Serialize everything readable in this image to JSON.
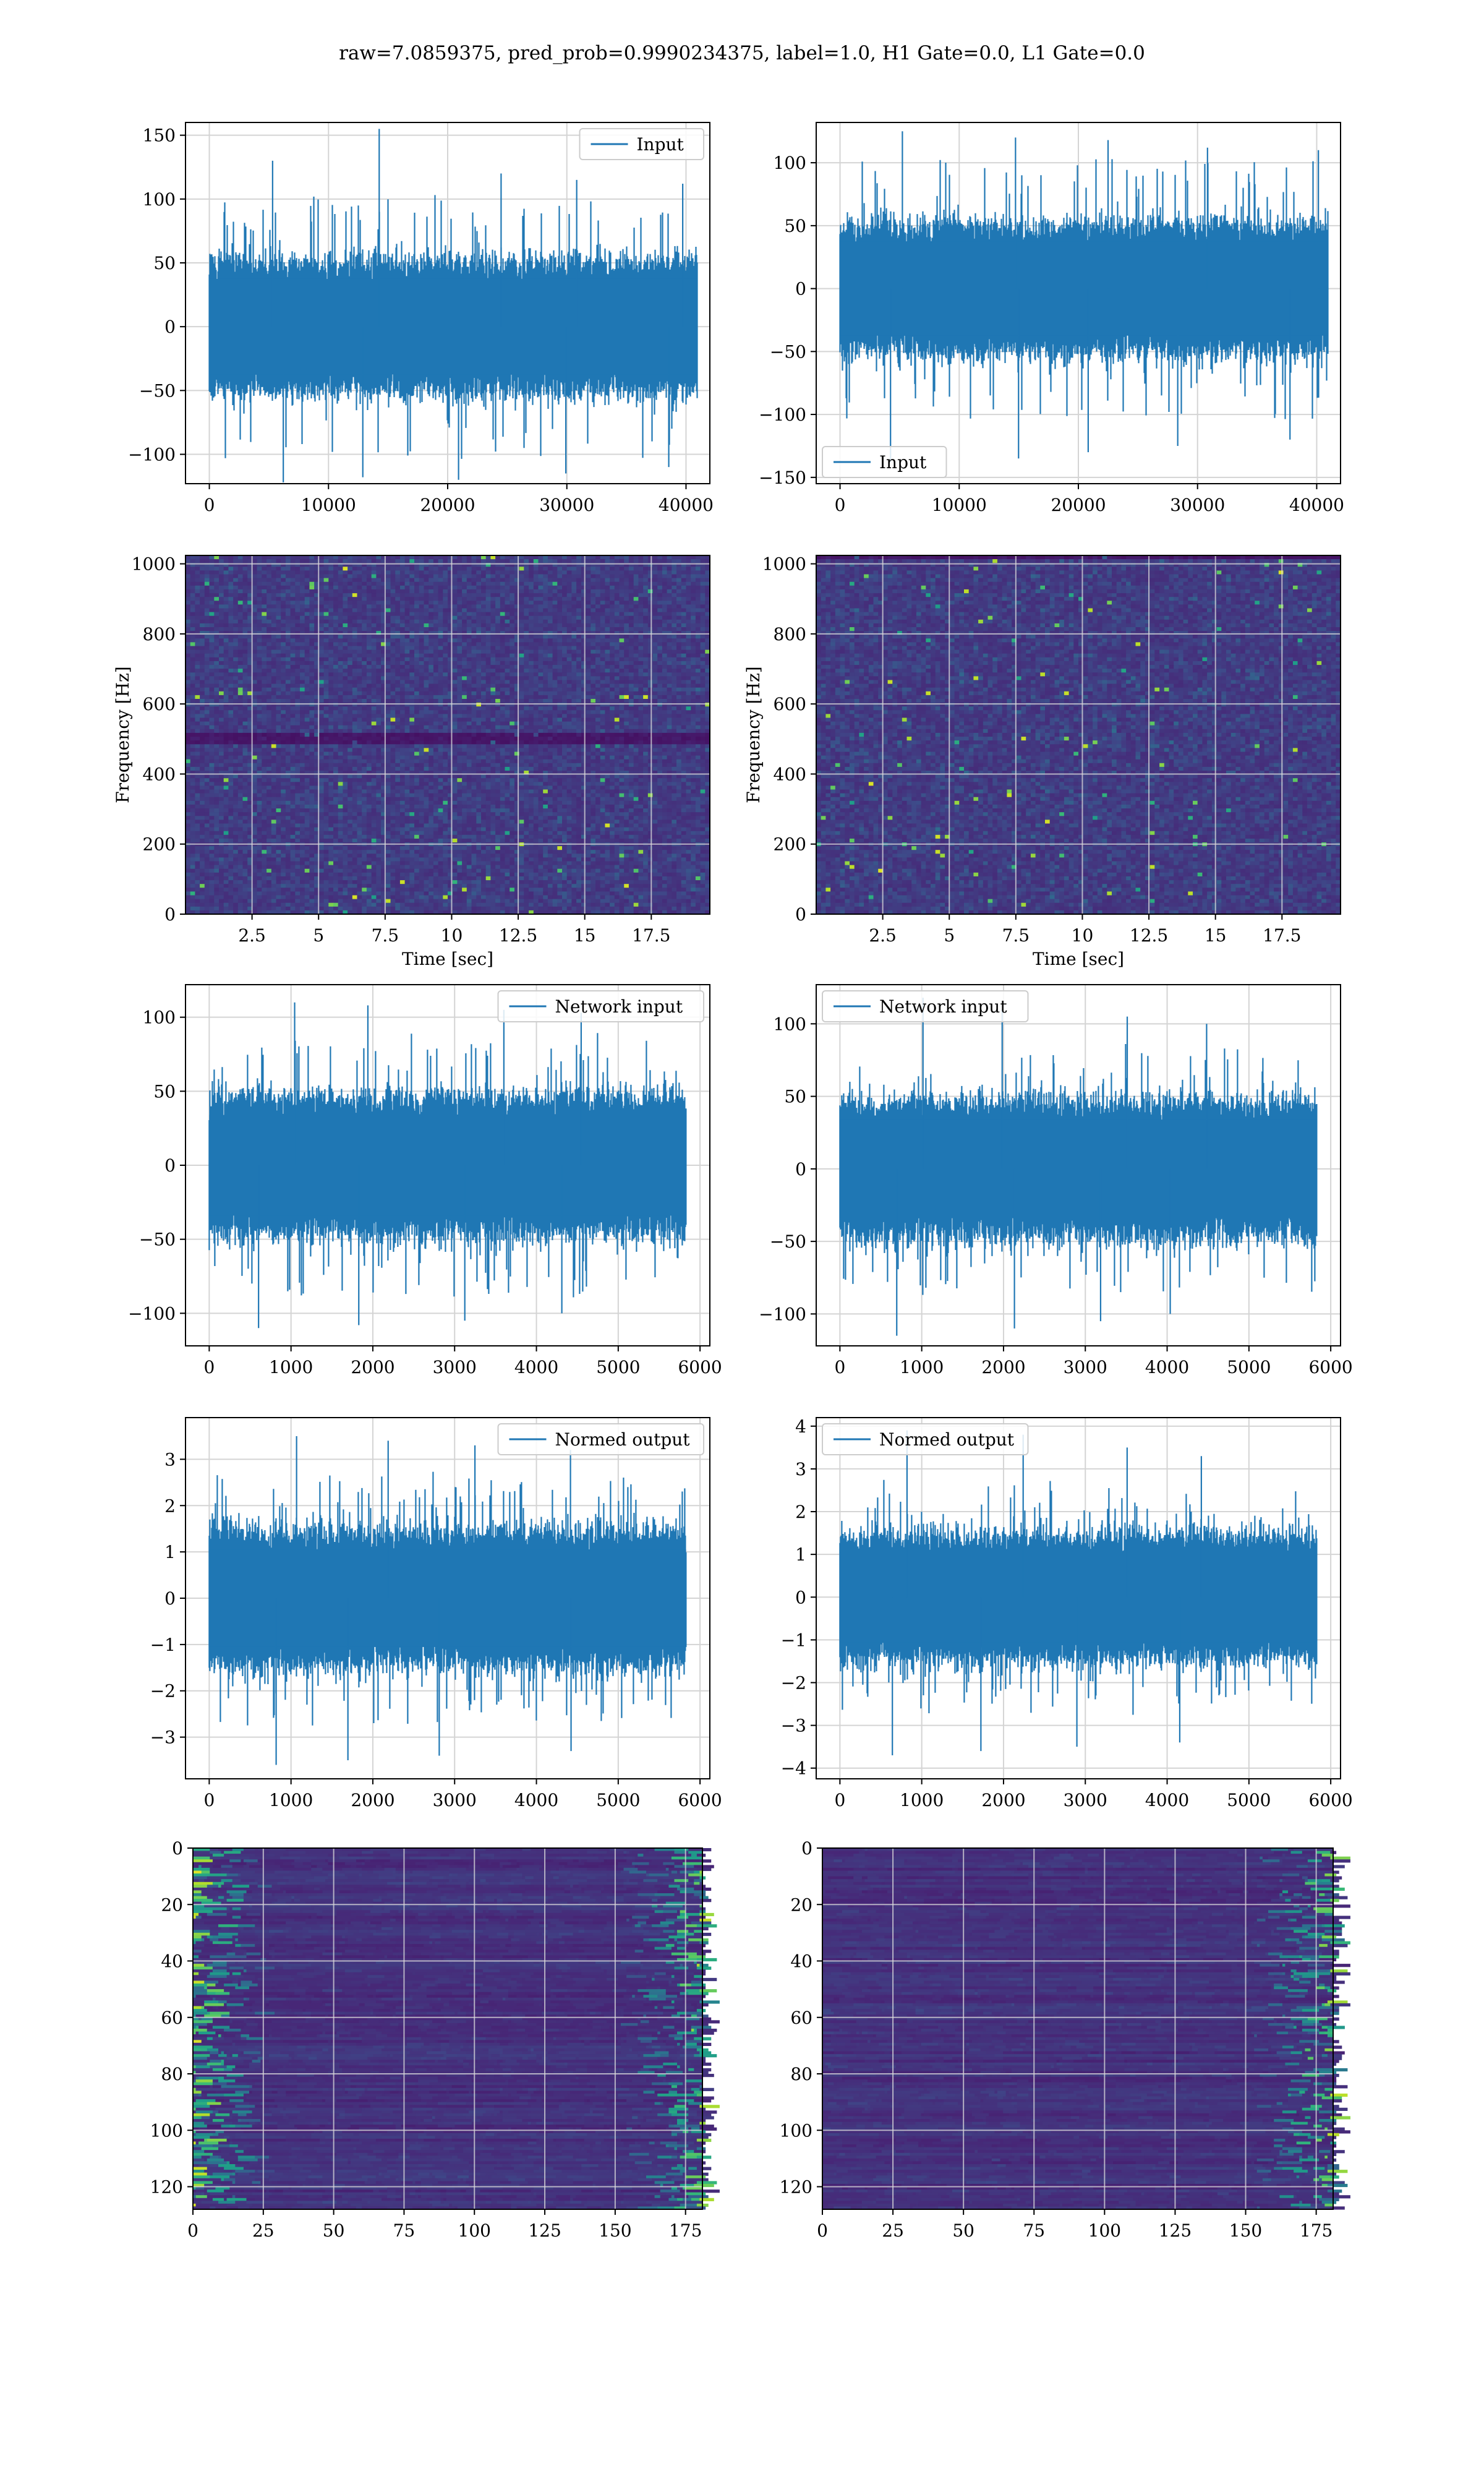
{
  "suptitle": "raw=7.0859375, pred_prob=0.9990234375, label=1.0, H1 Gate=0.0, L1 Gate=0.0",
  "colors": {
    "line": "#1f77b4",
    "grid": "#d4d4d4",
    "viridis_low": "#440154",
    "viridis_high": "#fde725"
  },
  "chart_data": [
    {
      "id": "input-h1",
      "type": "line",
      "legend": "Input",
      "legend_loc": "upper right",
      "xlim": [
        -2000,
        42000
      ],
      "ylim": [
        -123,
        160
      ],
      "xticks": [
        0,
        10000,
        20000,
        30000,
        40000
      ],
      "yticks": [
        -100,
        -50,
        0,
        50,
        100,
        150
      ],
      "x_range": [
        0,
        40960
      ],
      "band": {
        "rms": 22,
        "typical_peak": 72,
        "extremes_top": [
          130,
          155,
          120,
          115,
          112
        ],
        "extremes_bottom": [
          -122,
          -118,
          -120,
          -115,
          -110
        ]
      },
      "grid": true
    },
    {
      "id": "input-l1",
      "type": "line",
      "legend": "Input",
      "legend_loc": "lower left",
      "xlim": [
        -2000,
        42000
      ],
      "ylim": [
        -155,
        132
      ],
      "xticks": [
        0,
        10000,
        20000,
        30000,
        40000
      ],
      "yticks": [
        -150,
        -100,
        -50,
        0,
        50,
        100
      ],
      "x_range": [
        0,
        40960
      ],
      "band": {
        "rms": 22,
        "typical_peak": 72,
        "extremes_top": [
          125,
          120,
          118,
          112,
          110
        ],
        "extremes_bottom": [
          -138,
          -135,
          -130,
          -125,
          -120
        ]
      },
      "grid": true
    },
    {
      "id": "spec-h1",
      "type": "heatmap",
      "xlim": [
        0,
        19.7
      ],
      "ylim": [
        0,
        1024
      ],
      "xticks": [
        2.5,
        5.0,
        7.5,
        10.0,
        12.5,
        15.0,
        17.5
      ],
      "yticks": [
        0,
        200,
        400,
        600,
        800,
        1000
      ],
      "xlabel": "Time [sec]",
      "ylabel": "Frequency [Hz]",
      "colormap": "viridis",
      "dark_band_hz": 510,
      "grid": true
    },
    {
      "id": "spec-l1",
      "type": "heatmap",
      "xlim": [
        0,
        19.7
      ],
      "ylim": [
        0,
        1024
      ],
      "xticks": [
        2.5,
        5.0,
        7.5,
        10.0,
        12.5,
        15.0,
        17.5
      ],
      "yticks": [
        0,
        200,
        400,
        600,
        800,
        1000
      ],
      "xlabel": "Time [sec]",
      "ylabel": "Frequency [Hz]",
      "colormap": "viridis",
      "grid": true
    },
    {
      "id": "network-input-h1",
      "type": "line",
      "legend": "Network input",
      "legend_loc": "upper right",
      "xlim": [
        -290,
        6120
      ],
      "ylim": [
        -122,
        122
      ],
      "xticks": [
        0,
        1000,
        2000,
        3000,
        4000,
        5000,
        6000
      ],
      "yticks": [
        -100,
        -50,
        0,
        50,
        100
      ],
      "x_range": [
        0,
        5830
      ],
      "band": {
        "rms": 20,
        "typical_peak": 62,
        "extremes_top": [
          110,
          108,
          105,
          103
        ],
        "extremes_bottom": [
          -110,
          -108,
          -105,
          -100
        ]
      },
      "grid": true
    },
    {
      "id": "network-input-l1",
      "type": "line",
      "legend": "Network input",
      "legend_loc": "upper left",
      "xlim": [
        -290,
        6120
      ],
      "ylim": [
        -122,
        127
      ],
      "xticks": [
        0,
        1000,
        2000,
        3000,
        4000,
        5000,
        6000
      ],
      "yticks": [
        -100,
        -50,
        0,
        50,
        100
      ],
      "x_range": [
        0,
        5830
      ],
      "band": {
        "rms": 20,
        "typical_peak": 60,
        "extremes_top": [
          118,
          110,
          105,
          100
        ],
        "extremes_bottom": [
          -115,
          -110,
          -105,
          -100
        ]
      },
      "grid": true
    },
    {
      "id": "normed-output-h1",
      "type": "line",
      "legend": "Normed output",
      "legend_loc": "upper right",
      "xlim": [
        -290,
        6120
      ],
      "ylim": [
        -3.9,
        3.9
      ],
      "xticks": [
        0,
        1000,
        2000,
        3000,
        4000,
        5000,
        6000
      ],
      "yticks": [
        -3,
        -2,
        -1,
        0,
        1,
        2,
        3
      ],
      "x_range": [
        0,
        5830
      ],
      "band": {
        "rms": 0.62,
        "typical_peak": 1.9,
        "extremes_top": [
          3.5,
          3.4,
          3.3,
          3.2
        ],
        "extremes_bottom": [
          -3.6,
          -3.5,
          -3.4,
          -3.3
        ]
      },
      "grid": true
    },
    {
      "id": "normed-output-l1",
      "type": "line",
      "legend": "Normed output",
      "legend_loc": "upper left",
      "xlim": [
        -290,
        6120
      ],
      "ylim": [
        -4.25,
        4.2
      ],
      "xticks": [
        0,
        1000,
        2000,
        3000,
        4000,
        5000,
        6000
      ],
      "yticks": [
        -4,
        -3,
        -2,
        -1,
        0,
        1,
        2,
        3,
        4
      ],
      "x_range": [
        0,
        5830
      ],
      "band": {
        "rms": 0.62,
        "typical_peak": 1.9,
        "extremes_top": [
          3.9,
          3.8,
          3.5,
          3.3
        ],
        "extremes_bottom": [
          -3.7,
          -3.6,
          -3.5,
          -3.4
        ]
      },
      "grid": true
    },
    {
      "id": "embedding-h1",
      "type": "heatmap",
      "xlim": [
        0,
        181
      ],
      "ylim": [
        128,
        0
      ],
      "xticks": [
        0,
        25,
        50,
        75,
        100,
        125,
        150,
        175
      ],
      "yticks": [
        0,
        20,
        40,
        60,
        80,
        100,
        120
      ],
      "colormap": "viridis",
      "activity_edges": "left and right",
      "grid": true
    },
    {
      "id": "embedding-l1",
      "type": "heatmap",
      "xlim": [
        0,
        181
      ],
      "ylim": [
        128,
        0
      ],
      "xticks": [
        0,
        25,
        50,
        75,
        100,
        125,
        150,
        175
      ],
      "yticks": [
        0,
        20,
        40,
        60,
        80,
        100,
        120
      ],
      "colormap": "viridis",
      "activity_edges": "right",
      "grid": true
    }
  ]
}
